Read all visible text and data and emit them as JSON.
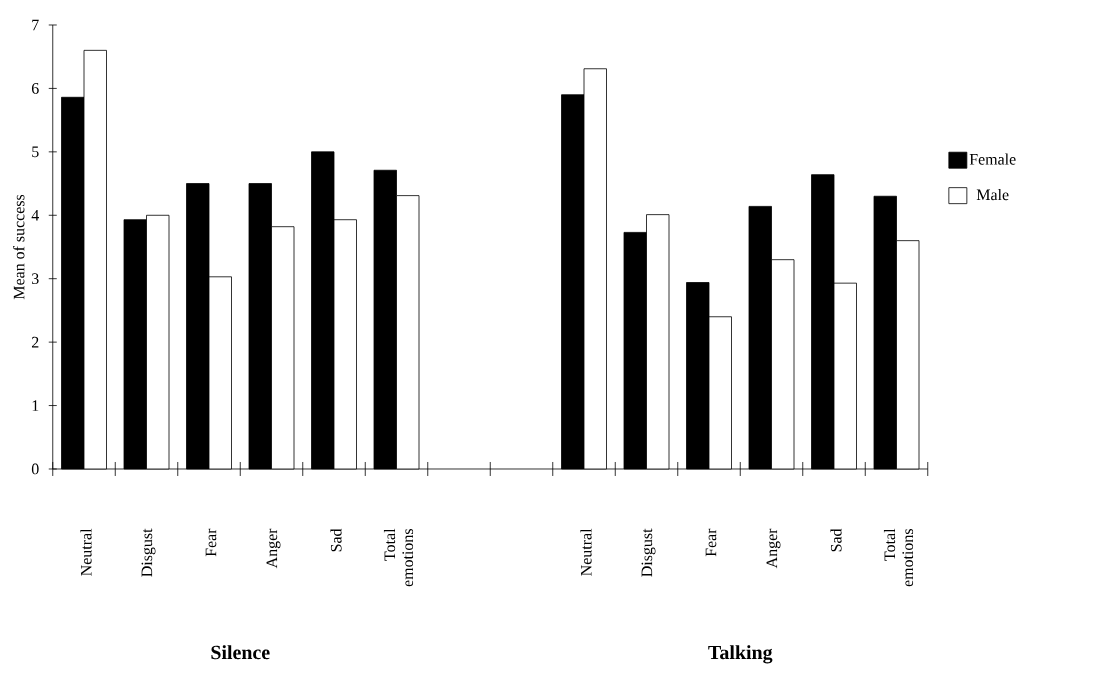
{
  "chart_data": {
    "type": "bar",
    "ylabel": "Mean of success",
    "categories": [
      "Neutral",
      "Disgust",
      "Fear",
      "Anger",
      "Sad",
      "Total emotions",
      null,
      null,
      "Neutral",
      "Disgust",
      "Fear",
      "Anger",
      "Sad",
      "Total emotions"
    ],
    "series": [
      {
        "name": "Female",
        "color": "#000000",
        "values": [
          5.86,
          3.93,
          4.5,
          4.5,
          5.0,
          4.71,
          null,
          null,
          5.9,
          3.73,
          2.94,
          4.14,
          4.64,
          4.3
        ]
      },
      {
        "name": "Male",
        "color": "#ffffff",
        "values": [
          6.6,
          4.0,
          3.03,
          3.82,
          3.93,
          4.31,
          null,
          null,
          6.31,
          4.01,
          2.4,
          3.3,
          2.93,
          3.6
        ]
      }
    ],
    "ylim": [
      0,
      7
    ],
    "yticks": [
      0,
      1,
      2,
      3,
      4,
      5,
      6,
      7
    ],
    "legend": "right",
    "annotations": [
      "Silence",
      "Talking"
    ]
  }
}
